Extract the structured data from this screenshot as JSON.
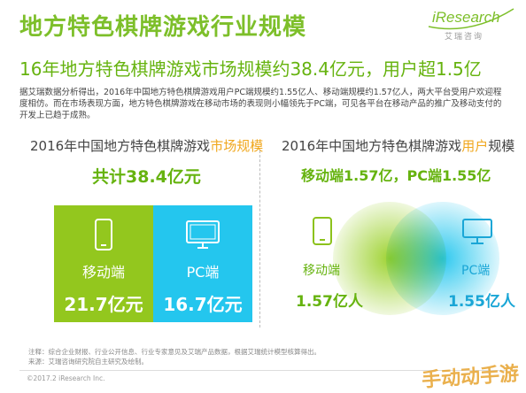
{
  "title": "地方特色棋牌游戏行业规模",
  "brand": {
    "name": "iResearch",
    "sub": "艾瑞咨询"
  },
  "subtitle": "16年地方特色棋牌游戏市场规模约38.4亿元，用户超1.5亿",
  "description": "据艾瑞数据分析得出，2016年中国地方特色棋牌游戏用户PC端规模约1.55亿人、移动端规模约1.57亿人，两大平台受用户欢迎程度相仿。而在市场表现方面，地方特色棋牌游戏在移动市场的表现则小幅领先于PC端，可见各平台在移动产品的推广及移动支付的开发上已趋于成熟。",
  "left_panel": {
    "title_prefix": "2016年中国地方特色棋牌游戏",
    "title_highlight": "市场规模",
    "total": "共计38.4亿元",
    "mobile": {
      "label": "移动端",
      "value": "21.7亿元",
      "color": "#93c71e"
    },
    "pc": {
      "label": "PC端",
      "value": "16.7亿元",
      "color": "#24c6ee"
    }
  },
  "right_panel": {
    "title_prefix": "2016年中国地方特色棋牌游戏",
    "title_highlight": "用户",
    "title_suffix": "规模",
    "split": "移动端1.57亿，PC端1.55亿",
    "mobile": {
      "label": "移动端",
      "value": "1.57亿人",
      "color": "#93c71e"
    },
    "pc": {
      "label": "PC端",
      "value": "1.55亿人",
      "color": "#24c6ee"
    }
  },
  "notes": {
    "line1": "注释：综合企业财报、行业公开信息、行业专家意见及艾瑞产品数据，根据艾瑞统计模型核算得出。",
    "line2": "来源：艾瑞咨询研究院自主研究及绘制。"
  },
  "copyright": "©2017.2 iResearch Inc.",
  "watermark": "手动动手游"
}
